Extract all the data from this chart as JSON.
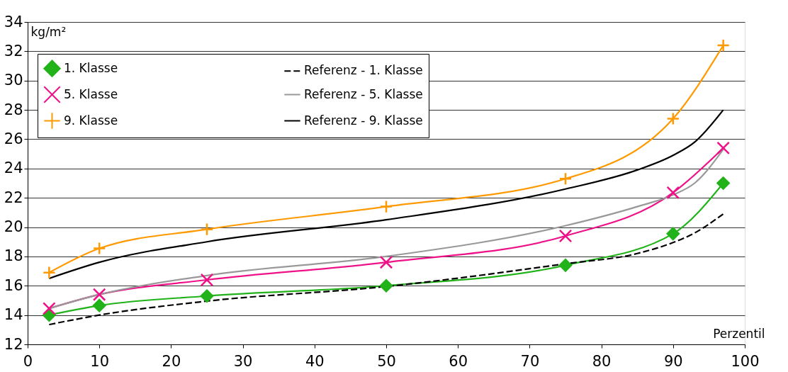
{
  "chart_data": {
    "type": "line",
    "ylabel": "kg/m²",
    "xlabel": "Perzentil",
    "xlim": [
      0,
      100
    ],
    "xticks": [
      0,
      10,
      20,
      30,
      40,
      50,
      60,
      70,
      80,
      90,
      100
    ],
    "ylim": [
      12,
      34
    ],
    "yticks": [
      12,
      14,
      16,
      18,
      20,
      22,
      24,
      26,
      28,
      30,
      32,
      34
    ],
    "grid": "y",
    "legend": "top left",
    "series": [
      {
        "name": "1. Klasse",
        "color": "#22b21a",
        "marker": "diamond",
        "line_style": "solid",
        "x": [
          3,
          10,
          25,
          50,
          75,
          90,
          97
        ],
        "values": [
          14.0,
          14.65,
          15.3,
          16.0,
          17.4,
          19.55,
          23.0
        ]
      },
      {
        "name": "5. Klasse",
        "color": "#ee1188",
        "marker": "cross",
        "line_style": "solid",
        "x": [
          3,
          10,
          25,
          50,
          75,
          90,
          97
        ],
        "values": [
          14.45,
          15.4,
          16.4,
          17.6,
          19.4,
          22.35,
          25.4
        ]
      },
      {
        "name": "9. Klasse",
        "color": "#ff9900",
        "marker": "plus",
        "line_style": "solid",
        "x": [
          3,
          10,
          25,
          50,
          75,
          90,
          97
        ],
        "values": [
          16.9,
          18.55,
          19.85,
          21.4,
          23.3,
          27.4,
          32.4
        ]
      },
      {
        "name": "Referenz - 1. Klasse",
        "color": "#000000",
        "marker": "none",
        "line_style": "dashed",
        "x": [
          3,
          10,
          25,
          50,
          75,
          85,
          90,
          93,
          97
        ],
        "values": [
          13.35,
          14.0,
          14.95,
          15.95,
          17.5,
          18.2,
          18.95,
          19.6,
          20.9
        ]
      },
      {
        "name": "Referenz - 5. Klasse",
        "color": "#999999",
        "marker": "none",
        "line_style": "solid",
        "x": [
          3,
          10,
          25,
          50,
          75,
          85,
          90,
          93,
          97
        ],
        "values": [
          14.45,
          15.4,
          16.7,
          18.0,
          20.1,
          21.4,
          22.2,
          23.0,
          25.3
        ]
      },
      {
        "name": "Referenz - 9. Klasse",
        "color": "#000000",
        "marker": "none",
        "line_style": "solid",
        "x": [
          3,
          10,
          25,
          50,
          75,
          85,
          90,
          93,
          97
        ],
        "values": [
          16.5,
          17.6,
          19.0,
          20.5,
          22.6,
          23.9,
          24.9,
          25.8,
          28.0
        ]
      }
    ]
  }
}
